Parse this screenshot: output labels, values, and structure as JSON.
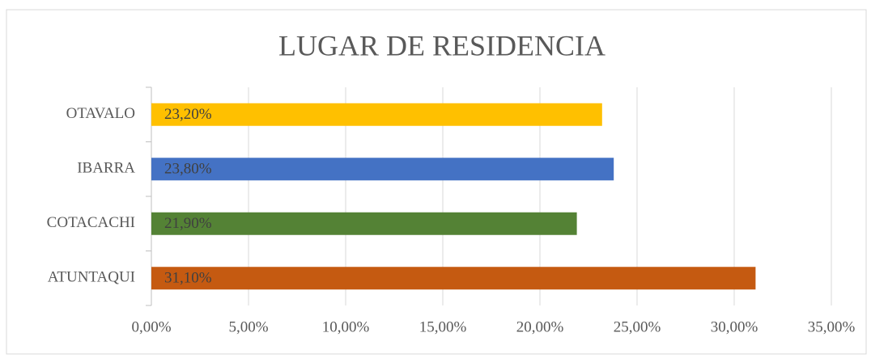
{
  "chart_data": {
    "type": "bar",
    "orientation": "horizontal",
    "title": "LUGAR DE RESIDENCIA",
    "categories": [
      "ATUNTAQUI",
      "COTACACHI",
      "IBARRA",
      "OTAVALO"
    ],
    "values": [
      31.1,
      21.9,
      23.8,
      23.2
    ],
    "value_labels": [
      "31,10%",
      "21,90%",
      "23,80%",
      "23,20%"
    ],
    "colors": [
      "#c55a11",
      "#548235",
      "#4472c4",
      "#ffc000"
    ],
    "xlim": [
      0,
      35
    ],
    "xticks": [
      {
        "value": 0,
        "label": "0,00%"
      },
      {
        "value": 5,
        "label": "5,00%"
      },
      {
        "value": 10,
        "label": "10,00%"
      },
      {
        "value": 15,
        "label": "15,00%"
      },
      {
        "value": 20,
        "label": "20,00%"
      },
      {
        "value": 25,
        "label": "25,00%"
      },
      {
        "value": 30,
        "label": "30,00%"
      },
      {
        "value": 35,
        "label": "35,00%"
      }
    ],
    "grid": true
  }
}
